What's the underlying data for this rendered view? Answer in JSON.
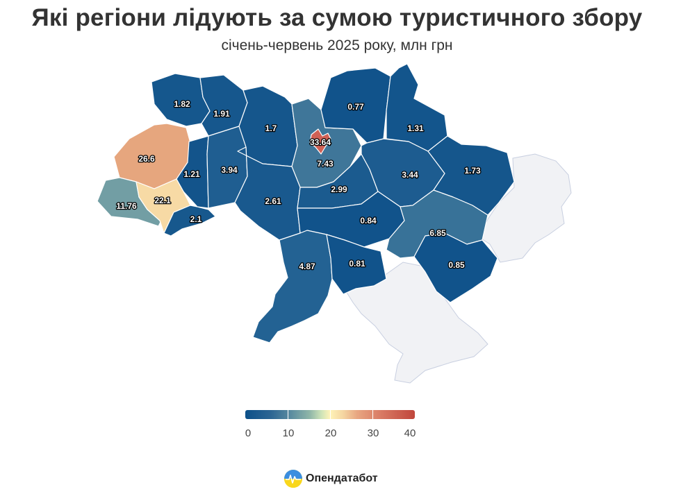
{
  "title": "Які регіони лідують за сумою туристичного збору",
  "subtitle": "січень-червень 2025 року, млн грн",
  "brand": "Опендатабот",
  "colors": {
    "scale_low": "#0d5089",
    "scale_mid": "#fff3b8",
    "scale_high": "#c0463c",
    "occupied": "#f1f2f5"
  },
  "legend": {
    "min": 0,
    "max": 40,
    "ticks": [
      "0",
      "10",
      "20",
      "30",
      "40"
    ]
  },
  "chart_data": {
    "type": "choropleth",
    "regions": [
      {
        "id": "volyn",
        "value": "1.82"
      },
      {
        "id": "rivne",
        "value": "1.91"
      },
      {
        "id": "zhytomyr",
        "value": "1.7"
      },
      {
        "id": "kyiv-oblast",
        "value": "7.43"
      },
      {
        "id": "kyiv-city",
        "value": "33.64"
      },
      {
        "id": "chernihiv",
        "value": "0.77"
      },
      {
        "id": "sumy",
        "value": "1.31"
      },
      {
        "id": "lviv",
        "value": "26.6"
      },
      {
        "id": "ternopil",
        "value": "1.21"
      },
      {
        "id": "khmelnytskyi",
        "value": "3.94"
      },
      {
        "id": "zakarpattia",
        "value": "11.76"
      },
      {
        "id": "ivano-frankivsk",
        "value": "22.1"
      },
      {
        "id": "chernivtsi",
        "value": "2.1"
      },
      {
        "id": "vinnytsia",
        "value": "2.61"
      },
      {
        "id": "cherkasy",
        "value": "2.99"
      },
      {
        "id": "poltava",
        "value": "3.44"
      },
      {
        "id": "kharkiv",
        "value": "1.73"
      },
      {
        "id": "kirovohrad",
        "value": "0.84"
      },
      {
        "id": "dnipropetrovsk",
        "value": "6.85"
      },
      {
        "id": "odesa",
        "value": "4.87"
      },
      {
        "id": "mykolaiv",
        "value": "0.81"
      },
      {
        "id": "zaporizhzhia",
        "value": "0.85"
      }
    ]
  }
}
